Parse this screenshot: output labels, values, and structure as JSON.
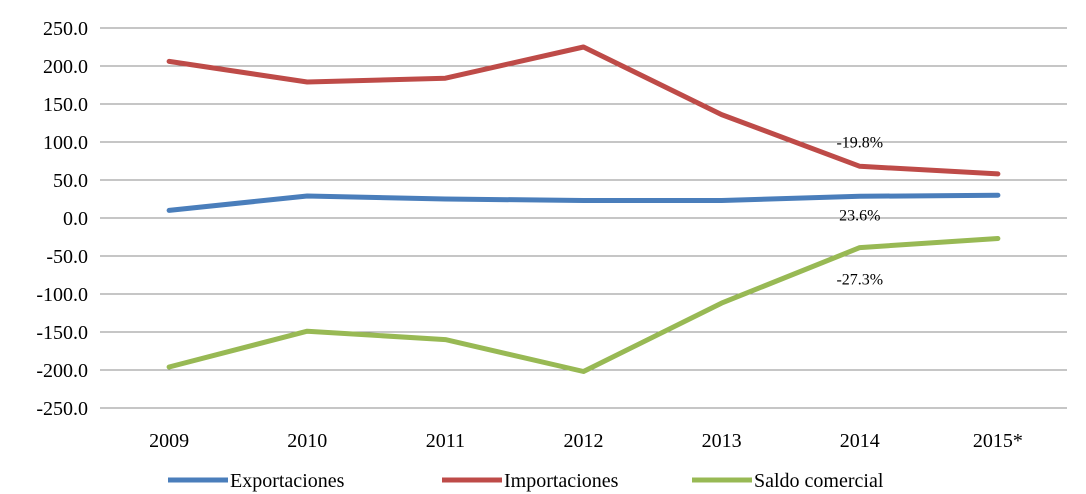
{
  "chart_data": {
    "type": "line",
    "categories": [
      "2009",
      "2010",
      "2011",
      "2012",
      "2013",
      "2014",
      "2015*"
    ],
    "series": [
      {
        "name": "Exportaciones",
        "color": "#4A7EBB",
        "values": [
          10.0,
          29.0,
          25.0,
          23.0,
          23.0,
          28.5,
          30.0
        ]
      },
      {
        "name": "Importaciones",
        "color": "#BE4B48",
        "values": [
          206.0,
          179.0,
          184.0,
          225.0,
          136.0,
          68.0,
          58.0
        ]
      },
      {
        "name": "Saldo comercial",
        "color": "#98B954",
        "values": [
          -196.0,
          -149.0,
          -160.0,
          -202.0,
          -112.0,
          -39.0,
          -27.0
        ]
      }
    ],
    "y_ticks": [
      "250.0",
      "200.0",
      "150.0",
      "100.0",
      "50.0",
      "0.0",
      "-50.0",
      "-100.0",
      "-150.0",
      "-200.0",
      "-250.0"
    ],
    "ylim": [
      -250,
      250
    ],
    "grid": true,
    "legend": "bottom",
    "annotations": [
      {
        "text": "-19.8%",
        "series": "Importaciones",
        "category": "2014"
      },
      {
        "text": "23.6%",
        "series": "Exportaciones",
        "category": "2014"
      },
      {
        "text": "-27.3%",
        "series": "Saldo comercial",
        "category": "2014"
      }
    ]
  }
}
